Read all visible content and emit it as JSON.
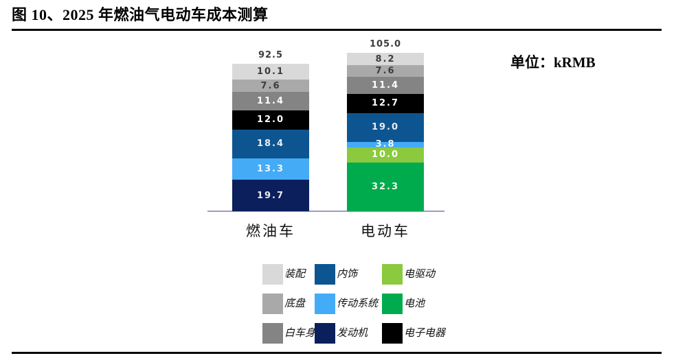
{
  "figure": {
    "title": "图 10、2025 年燃油气电动车成本测算",
    "unit_label": "单位：kRMB"
  },
  "colors": {
    "装配": {
      "fill": "#d9d9d9",
      "text": "#3c3c3c"
    },
    "底盘": {
      "fill": "#a9a9a9",
      "text": "#3c3c3c"
    },
    "白车身": {
      "fill": "#848484",
      "text": "#ffffff"
    },
    "电子电器": {
      "fill": "#000000",
      "text": "#ffffff"
    },
    "内饰": {
      "fill": "#0d5590",
      "text": "#e9eef3"
    },
    "传动系统": {
      "fill": "#44abf7",
      "text": "#f0f6fc"
    },
    "发动机": {
      "fill": "#0b1f5c",
      "text": "#e9eef3"
    },
    "电驱动": {
      "fill": "#8bc93f",
      "text": "#ffffff"
    },
    "电池": {
      "fill": "#00ab4e",
      "text": "#f0f8f2"
    }
  },
  "chart_data": {
    "type": "bar",
    "stacked": true,
    "unit": "kRMB",
    "grid": false,
    "legend_position": "bottom",
    "totals_shown": true,
    "categories": [
      "燃油车",
      "电动车"
    ],
    "bars": [
      {
        "category": "燃油车",
        "total": 92.5,
        "segments": [
          {
            "name": "装配",
            "value": 10.1
          },
          {
            "name": "底盘",
            "value": 7.6
          },
          {
            "name": "白车身",
            "value": 11.4
          },
          {
            "name": "电子电器",
            "value": 12.0
          },
          {
            "name": "内饰",
            "value": 18.4
          },
          {
            "name": "传动系统",
            "value": 13.3
          },
          {
            "name": "发动机",
            "value": 19.7
          }
        ]
      },
      {
        "category": "电动车",
        "total": 105.0,
        "segments": [
          {
            "name": "装配",
            "value": 8.2
          },
          {
            "name": "底盘",
            "value": 7.6
          },
          {
            "name": "白车身",
            "value": 11.4
          },
          {
            "name": "电子电器",
            "value": 12.7
          },
          {
            "name": "内饰",
            "value": 19.0
          },
          {
            "name": "传动系统",
            "value": 3.8
          },
          {
            "name": "电驱动",
            "value": 10.0
          },
          {
            "name": "电池",
            "value": 32.3
          }
        ]
      }
    ],
    "legend_rows": [
      [
        "装配",
        "内饰",
        "电驱动"
      ],
      [
        "底盘",
        "传动系统",
        "电池"
      ],
      [
        "白车身",
        "发动机",
        "电子电器"
      ]
    ]
  }
}
